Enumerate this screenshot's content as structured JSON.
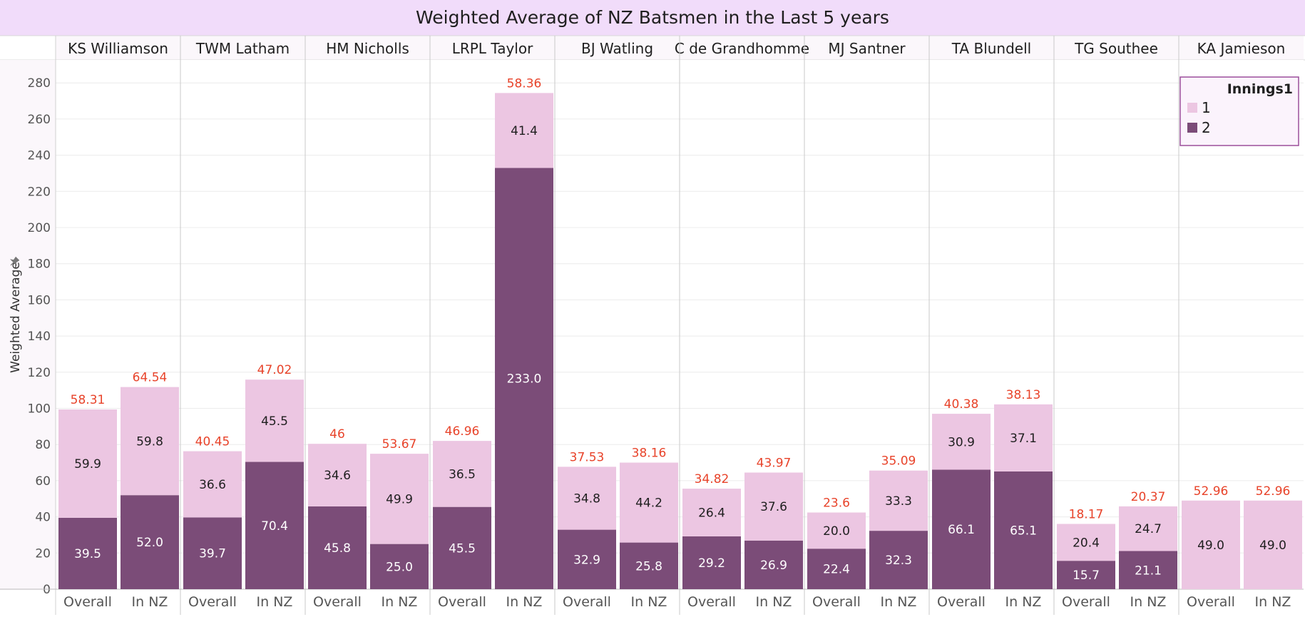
{
  "chart_data": {
    "type": "bar",
    "stacked": true,
    "title": "Weighted Average of NZ Batsmen in the Last 5 years",
    "ylabel": "Weighted Average",
    "ylim": [
      0,
      290
    ],
    "yticks": [
      0,
      20,
      40,
      60,
      80,
      100,
      120,
      140,
      160,
      180,
      200,
      220,
      240,
      260,
      280
    ],
    "grid": true,
    "legend": {
      "title": "Innings1",
      "placement": "top-right",
      "items": [
        {
          "name": "1",
          "color": "#ecc6e2"
        },
        {
          "name": "2",
          "color": "#7b4c78"
        }
      ]
    },
    "colors": {
      "innings1": "#ecc6e2",
      "innings2": "#7b4c78",
      "total_label": "#e8432a",
      "title_band": "#f1dcfa"
    },
    "categories": [
      "Overall",
      "In NZ"
    ],
    "players": [
      {
        "name": "KS Williamson",
        "bars": [
          {
            "category": "Overall",
            "innings2": 39.5,
            "innings1": 59.9,
            "total_label": "58.31"
          },
          {
            "category": "In NZ",
            "innings2": 52.0,
            "innings1": 59.8,
            "total_label": "64.54"
          }
        ]
      },
      {
        "name": "TWM Latham",
        "bars": [
          {
            "category": "Overall",
            "innings2": 39.7,
            "innings1": 36.6,
            "total_label": "40.45"
          },
          {
            "category": "In NZ",
            "innings2": 70.4,
            "innings1": 45.5,
            "total_label": "47.02"
          }
        ]
      },
      {
        "name": "HM Nicholls",
        "bars": [
          {
            "category": "Overall",
            "innings2": 45.8,
            "innings1": 34.6,
            "total_label": "46"
          },
          {
            "category": "In NZ",
            "innings2": 25.0,
            "innings1": 49.9,
            "total_label": "53.67"
          }
        ]
      },
      {
        "name": "LRPL Taylor",
        "bars": [
          {
            "category": "Overall",
            "innings2": 45.5,
            "innings1": 36.5,
            "total_label": "46.96"
          },
          {
            "category": "In NZ",
            "innings2": 233.0,
            "innings1": 41.4,
            "total_label": "58.36"
          }
        ]
      },
      {
        "name": "BJ Watling",
        "bars": [
          {
            "category": "Overall",
            "innings2": 32.9,
            "innings1": 34.8,
            "total_label": "37.53"
          },
          {
            "category": "In NZ",
            "innings2": 25.8,
            "innings1": 44.2,
            "total_label": "38.16"
          }
        ]
      },
      {
        "name": "C de Grandhomme",
        "bars": [
          {
            "category": "Overall",
            "innings2": 29.2,
            "innings1": 26.4,
            "total_label": "34.82"
          },
          {
            "category": "In NZ",
            "innings2": 26.9,
            "innings1": 37.6,
            "total_label": "43.97"
          }
        ]
      },
      {
        "name": "MJ Santner",
        "bars": [
          {
            "category": "Overall",
            "innings2": 22.4,
            "innings1": 20.0,
            "total_label": "23.6"
          },
          {
            "category": "In NZ",
            "innings2": 32.3,
            "innings1": 33.3,
            "total_label": "35.09"
          }
        ]
      },
      {
        "name": "TA Blundell",
        "bars": [
          {
            "category": "Overall",
            "innings2": 66.1,
            "innings1": 30.9,
            "total_label": "40.38"
          },
          {
            "category": "In NZ",
            "innings2": 65.1,
            "innings1": 37.1,
            "total_label": "38.13"
          }
        ]
      },
      {
        "name": "TG Southee",
        "bars": [
          {
            "category": "Overall",
            "innings2": 15.7,
            "innings1": 20.4,
            "total_label": "18.17"
          },
          {
            "category": "In NZ",
            "innings2": 21.1,
            "innings1": 24.7,
            "total_label": "20.37"
          }
        ]
      },
      {
        "name": "KA Jamieson",
        "bars": [
          {
            "category": "Overall",
            "innings2": null,
            "innings1": 49.0,
            "total_label": "52.96"
          },
          {
            "category": "In NZ",
            "innings2": null,
            "innings1": 49.0,
            "total_label": "52.96"
          }
        ]
      }
    ]
  }
}
